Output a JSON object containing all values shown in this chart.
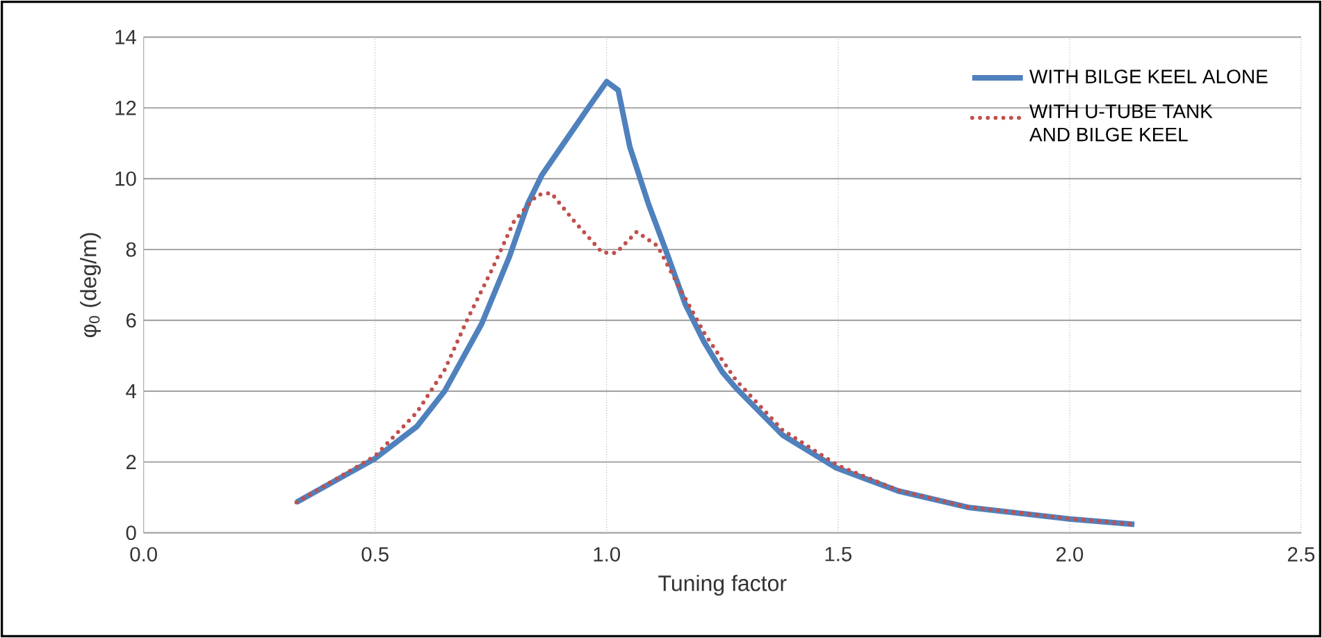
{
  "chart_data": {
    "type": "line",
    "xlabel": "Tuning factor",
    "ylabel": "φ$_{0}$ (deg/m)",
    "xlim": [
      0,
      2.5
    ],
    "ylim": [
      0,
      14
    ],
    "xticks": [
      {
        "value": 0,
        "label": "0.0"
      },
      0.5,
      {
        "value": 1,
        "label": "1.0"
      },
      1.5,
      {
        "value": 2,
        "label": "2.0"
      },
      2.5
    ],
    "yticks": [
      0,
      2,
      4,
      6,
      8,
      10,
      12,
      14
    ],
    "grid": true,
    "legend": "top right",
    "series": [
      {
        "name": "WITH BILGE KEEL ALONE",
        "color": "#4f81bd",
        "line_style": "solid",
        "x": [
          0.33,
          0.5,
          0.59,
          0.65,
          0.73,
          0.79,
          0.83,
          0.86,
          0.91,
          0.96,
          1.0,
          1.025,
          1.05,
          1.09,
          1.13,
          1.17,
          1.21,
          1.25,
          1.28,
          1.38,
          1.495,
          1.63,
          1.78,
          2.0,
          2.14
        ],
        "values": [
          0.86,
          2.1,
          3.0,
          4.0,
          5.9,
          7.8,
          9.3,
          10.1,
          11.05,
          12.0,
          12.74,
          12.5,
          10.9,
          9.3,
          7.9,
          6.45,
          5.4,
          4.54,
          4.08,
          2.76,
          1.84,
          1.18,
          0.72,
          0.39,
          0.24
        ]
      },
      {
        "name": "WITH U-TUBE TANK AND BILGE KEEL",
        "color": "#c0504d",
        "line_style": "dotted",
        "x": [
          0.33,
          0.5,
          0.59,
          0.65,
          0.7,
          0.75,
          0.8,
          0.85,
          0.88,
          0.93,
          0.99,
          1.02,
          1.065,
          1.11,
          1.15,
          1.21,
          1.25,
          1.28,
          1.38,
          1.5,
          1.63,
          1.78,
          2.0,
          2.14
        ],
        "values": [
          0.86,
          2.17,
          3.4,
          4.6,
          6.05,
          7.37,
          8.8,
          9.54,
          9.6,
          8.8,
          7.92,
          7.9,
          8.5,
          8.1,
          7.1,
          5.66,
          4.87,
          4.3,
          2.9,
          1.9,
          1.2,
          0.73,
          0.4,
          0.24
        ]
      }
    ]
  }
}
